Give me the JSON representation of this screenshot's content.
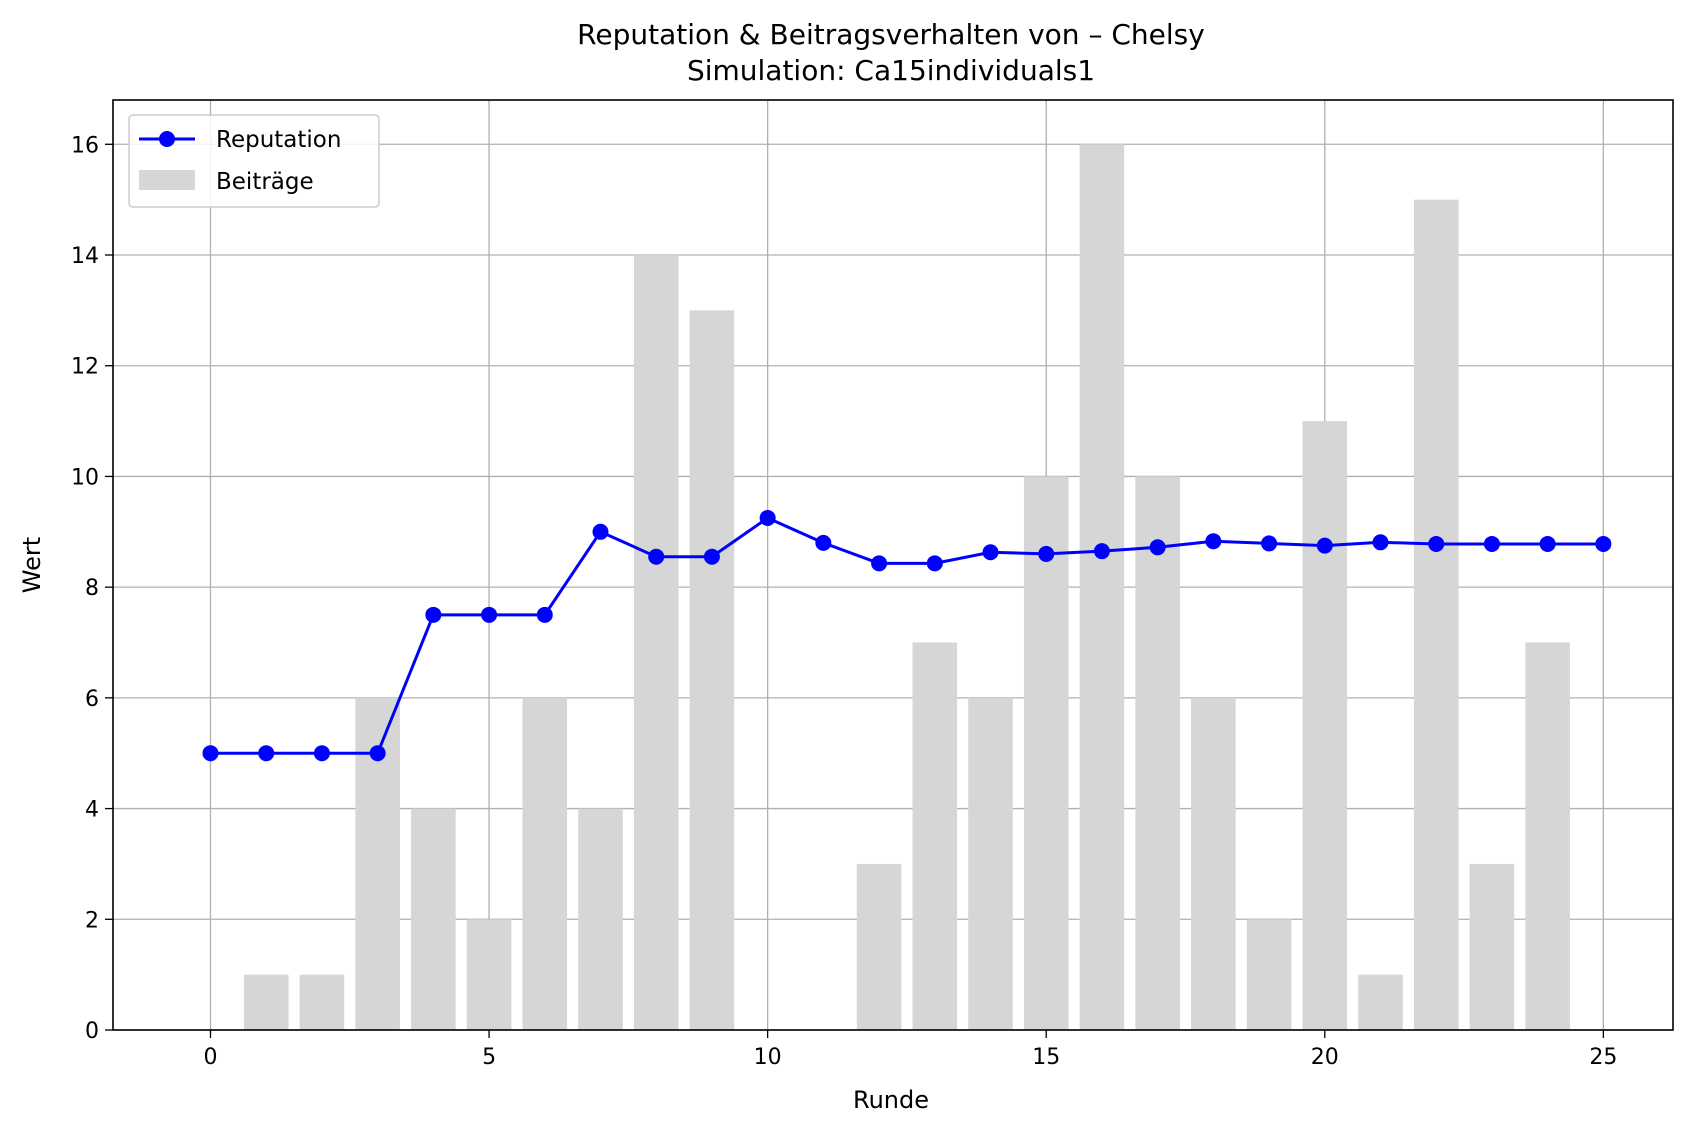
{
  "chart_data": {
    "type": "bar+line",
    "title": "Reputation & Beitragsverhalten von – Chelsy",
    "subtitle": "Simulation: Ca15individuals1",
    "xlabel": "Runde",
    "ylabel": "Wert",
    "xlim": [
      -1.75,
      26.25
    ],
    "ylim": [
      0,
      16.8
    ],
    "xticks": [
      0,
      5,
      10,
      15,
      20,
      25
    ],
    "yticks": [
      0,
      2,
      4,
      6,
      8,
      10,
      12,
      14,
      16
    ],
    "grid": true,
    "legend_position": "top-left",
    "bars": {
      "name": "Beiträge",
      "color": "#d6d6d6",
      "x": [
        0,
        1,
        2,
        3,
        4,
        5,
        6,
        7,
        8,
        9,
        10,
        11,
        12,
        13,
        14,
        15,
        16,
        17,
        18,
        19,
        20,
        21,
        22,
        23,
        24,
        25
      ],
      "values": [
        0,
        1,
        1,
        6,
        4,
        2,
        6,
        4,
        14,
        13,
        0,
        0,
        3,
        7,
        6,
        10,
        16,
        10,
        6,
        2,
        11,
        1,
        15,
        3,
        7,
        0
      ]
    },
    "line": {
      "name": "Reputation",
      "color": "#0000ff",
      "x": [
        0,
        1,
        2,
        3,
        4,
        5,
        6,
        7,
        8,
        9,
        10,
        11,
        12,
        13,
        14,
        15,
        16,
        17,
        18,
        19,
        20,
        21,
        22,
        23,
        24,
        25
      ],
      "values": [
        5.0,
        5.0,
        5.0,
        5.0,
        7.5,
        7.5,
        7.5,
        9.0,
        8.55,
        8.55,
        9.25,
        8.8,
        8.43,
        8.43,
        8.63,
        8.6,
        8.65,
        8.72,
        8.83,
        8.79,
        8.75,
        8.81,
        8.78,
        8.78,
        8.78,
        8.78
      ]
    }
  }
}
